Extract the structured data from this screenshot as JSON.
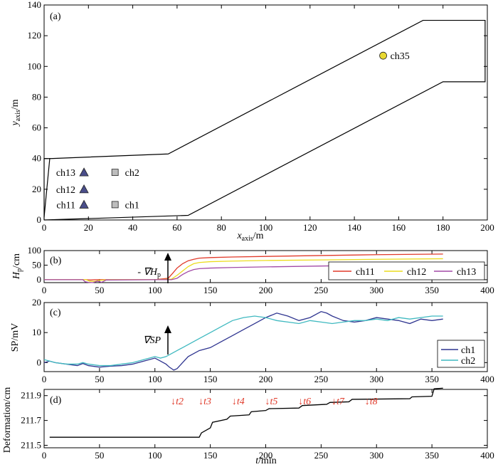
{
  "chart_data": [
    {
      "type": "diagram-map",
      "panel_label": "(a)",
      "xlabel": "x",
      "xlabel_sub": "axis",
      "xlabel_unit": "/m",
      "ylabel": "y",
      "ylabel_sub": "axis",
      "ylabel_unit": "/m",
      "xlim": [
        0,
        200
      ],
      "ylim": [
        0,
        140
      ],
      "xticks": [
        "0",
        "20",
        "40",
        "60",
        "80",
        "100",
        "120",
        "140",
        "160",
        "180",
        "200"
      ],
      "yticks": [
        "0",
        "20",
        "40",
        "60",
        "80",
        "100",
        "120",
        "140"
      ],
      "outline": [
        [
          0,
          0
        ],
        [
          0,
          40
        ],
        [
          3,
          40
        ],
        [
          56,
          43
        ],
        [
          171,
          130
        ],
        [
          199,
          130
        ],
        [
          199,
          90
        ],
        [
          180,
          90
        ],
        [
          65,
          3
        ],
        [
          0,
          0
        ]
      ],
      "sensors": [
        {
          "label": "ch13",
          "x": 18,
          "y": 31,
          "marker": "triangle",
          "color": "#4a4e8a"
        },
        {
          "label": "ch12",
          "x": 18,
          "y": 20,
          "marker": "triangle",
          "color": "#4a4e8a"
        },
        {
          "label": "ch11",
          "x": 18,
          "y": 10,
          "marker": "triangle",
          "color": "#4a4e8a"
        },
        {
          "label": "ch2",
          "x": 32,
          "y": 31,
          "marker": "square",
          "color": "#bdbdbd"
        },
        {
          "label": "ch1",
          "x": 32,
          "y": 10,
          "marker": "square",
          "color": "#bdbdbd"
        },
        {
          "label": "ch35",
          "x": 153,
          "y": 107,
          "marker": "circle",
          "color": "#e8d832"
        }
      ]
    },
    {
      "type": "line",
      "panel_label": "(b)",
      "ylabel": "H",
      "ylabel_sub": "p",
      "ylabel_unit": "/cm",
      "xlim": [
        0,
        400
      ],
      "ylim": [
        -10,
        100
      ],
      "xticks": [
        "0",
        "50",
        "100",
        "150",
        "200",
        "250",
        "300",
        "350",
        "400"
      ],
      "yticks": [
        "0",
        "50",
        "100"
      ],
      "annotation": "- ∇H",
      "annotation_sub": "p",
      "legend_position": "bottom-right",
      "series": [
        {
          "name": "ch11",
          "color": "#e03a2a",
          "x": [
            0,
            30,
            38,
            42,
            46,
            55,
            70,
            100,
            112,
            116,
            120,
            125,
            130,
            135,
            140,
            150,
            170,
            200,
            250,
            300,
            360
          ],
          "y": [
            0,
            0,
            0,
            -1,
            0,
            0,
            0,
            0,
            5,
            22,
            40,
            55,
            65,
            70,
            74,
            76,
            78,
            80,
            83,
            86,
            88
          ]
        },
        {
          "name": "ch12",
          "color": "#ecdc1f",
          "x": [
            0,
            38,
            41,
            45,
            50,
            60,
            100,
            115,
            120,
            125,
            130,
            135,
            140,
            150,
            170,
            200,
            250,
            300,
            360
          ],
          "y": [
            0,
            0,
            -5,
            -6,
            -2,
            0,
            0,
            2,
            15,
            30,
            45,
            55,
            59,
            62,
            64,
            66,
            68,
            70,
            72
          ]
        },
        {
          "name": "ch13",
          "color": "#a24aa6",
          "x": [
            0,
            35,
            37,
            40,
            44,
            48,
            52,
            56,
            100,
            115,
            120,
            125,
            130,
            135,
            140,
            150,
            170,
            200,
            250,
            300,
            360
          ],
          "y": [
            0,
            0,
            -7,
            -9,
            -10,
            -5,
            -9,
            -1,
            0,
            0,
            5,
            18,
            28,
            35,
            38,
            40,
            42,
            44,
            47,
            50,
            52
          ]
        }
      ]
    },
    {
      "type": "line",
      "panel_label": "(c)",
      "ylabel": "SP/mV",
      "xlim": [
        0,
        400
      ],
      "ylim": [
        -3,
        20
      ],
      "xticks": [
        "0",
        "50",
        "100",
        "150",
        "200",
        "250",
        "300",
        "350",
        "400"
      ],
      "yticks": [
        "0",
        "10",
        "20"
      ],
      "annotation": "∇SP",
      "legend_position": "bottom-right",
      "series": [
        {
          "name": "ch1",
          "color": "#2f3590",
          "x": [
            0,
            5,
            10,
            20,
            30,
            35,
            40,
            50,
            60,
            70,
            80,
            90,
            100,
            105,
            110,
            113,
            117,
            120,
            125,
            130,
            140,
            150,
            160,
            170,
            180,
            190,
            200,
            210,
            220,
            230,
            240,
            250,
            255,
            260,
            270,
            280,
            290,
            300,
            310,
            320,
            330,
            340,
            350,
            360
          ],
          "y": [
            0,
            0.5,
            0,
            -0.5,
            -1,
            -0.3,
            -1,
            -1.5,
            -1.2,
            -1,
            -0.5,
            0.5,
            1.5,
            0.5,
            -0.5,
            -1.5,
            -2.5,
            -2,
            0,
            2,
            4,
            5,
            7,
            9,
            11,
            13,
            15,
            16.5,
            15.5,
            14,
            15,
            17,
            16.5,
            15.5,
            14,
            13.5,
            14,
            15,
            14.5,
            14,
            13,
            14.5,
            14,
            14.5
          ]
        },
        {
          "name": "ch2",
          "color": "#3fb9c0",
          "x": [
            0,
            5,
            10,
            20,
            30,
            35,
            40,
            50,
            60,
            70,
            80,
            90,
            100,
            105,
            110,
            115,
            120,
            125,
            130,
            135,
            140,
            150,
            160,
            170,
            180,
            190,
            200,
            210,
            220,
            230,
            240,
            250,
            260,
            270,
            280,
            290,
            300,
            310,
            320,
            330,
            340,
            350,
            360
          ],
          "y": [
            1,
            0.5,
            0,
            -0.5,
            -0.5,
            0,
            -0.5,
            -1,
            -1,
            -0.5,
            0,
            1,
            2,
            1.5,
            2,
            3,
            4,
            5,
            6,
            7,
            8,
            10,
            12,
            14,
            15,
            15.5,
            15,
            14,
            13.5,
            13,
            14,
            13.5,
            13,
            13.5,
            14,
            14,
            14.5,
            14,
            15,
            14.5,
            15,
            15.5,
            15.5
          ]
        }
      ]
    },
    {
      "type": "line",
      "panel_label": "(d)",
      "xlabel": "t",
      "xlabel_unit": "/min",
      "ylabel": "Deformation/cm",
      "xlim": [
        0,
        400
      ],
      "ylim": [
        211.48,
        211.95
      ],
      "xticks": [
        "0",
        "50",
        "100",
        "150",
        "200",
        "250",
        "300",
        "350",
        "400"
      ],
      "yticks": [
        "211.5",
        "211.7",
        "211.9"
      ],
      "markers": [
        {
          "label": "↓t2",
          "x": 115
        },
        {
          "label": "↓t3",
          "x": 140
        },
        {
          "label": "↓t4",
          "x": 170
        },
        {
          "label": "↓t5",
          "x": 200
        },
        {
          "label": "↓t6",
          "x": 230
        },
        {
          "label": "↓t7",
          "x": 260
        },
        {
          "label": "↓t8",
          "x": 290
        }
      ],
      "marker_color": "#e03a2a",
      "series": [
        {
          "color": "#000000",
          "x": [
            5,
            140,
            142,
            150,
            152,
            165,
            168,
            185,
            187,
            200,
            203,
            230,
            233,
            255,
            258,
            275,
            278,
            330,
            332,
            350,
            352,
            360
          ],
          "y": [
            211.565,
            211.565,
            211.6,
            211.64,
            211.685,
            211.71,
            211.735,
            211.745,
            211.77,
            211.78,
            211.795,
            211.8,
            211.82,
            211.83,
            211.845,
            211.85,
            211.87,
            211.875,
            211.89,
            211.895,
            211.955,
            211.96
          ]
        }
      ]
    }
  ]
}
